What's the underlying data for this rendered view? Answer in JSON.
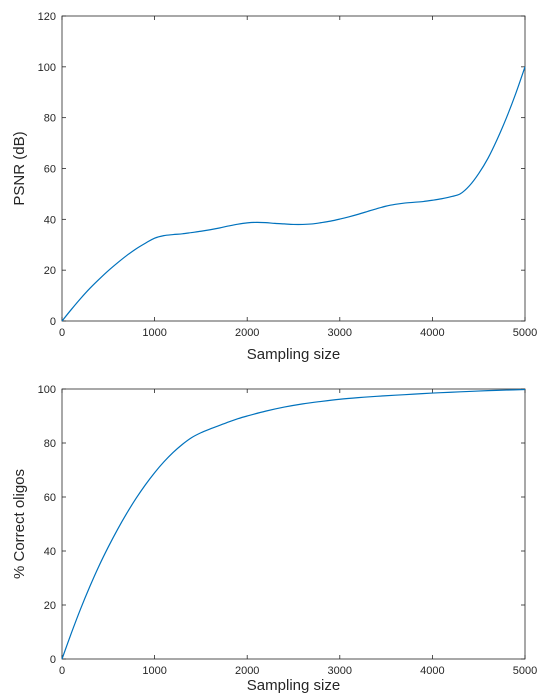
{
  "chart_data": [
    {
      "type": "line",
      "title": "",
      "xlabel": "Sampling size",
      "ylabel": "PSNR (dB)",
      "xlim": [
        0,
        5000
      ],
      "ylim": [
        0,
        120
      ],
      "xticks": [
        0,
        1000,
        2000,
        3000,
        4000,
        5000
      ],
      "yticks": [
        0,
        20,
        40,
        60,
        80,
        100,
        120
      ],
      "grid": false,
      "legend": "none",
      "line_color": "#0072BD",
      "series": [
        {
          "x": [
            0,
            100,
            200,
            300,
            400,
            500,
            600,
            700,
            800,
            900,
            1000,
            1100,
            1200,
            1300,
            1400,
            1500,
            1600,
            1700,
            1800,
            1900,
            2000,
            2100,
            2200,
            2300,
            2400,
            2500,
            2600,
            2700,
            2800,
            2900,
            3000,
            3100,
            3200,
            3300,
            3400,
            3500,
            3600,
            3700,
            3800,
            3900,
            4000,
            4100,
            4200,
            4300,
            4400,
            4500,
            4600,
            4700,
            4800,
            4900,
            5000
          ],
          "y": [
            0,
            4.5,
            8.8,
            12.8,
            16.4,
            19.8,
            22.9,
            25.8,
            28.4,
            30.6,
            32.6,
            33.6,
            34.0,
            34.3,
            34.8,
            35.3,
            35.9,
            36.6,
            37.4,
            38.1,
            38.6,
            38.8,
            38.7,
            38.4,
            38.2,
            38.0,
            38.0,
            38.2,
            38.7,
            39.3,
            40.1,
            41.0,
            42.0,
            43.1,
            44.2,
            45.2,
            45.9,
            46.4,
            46.7,
            47.0,
            47.5,
            48.1,
            48.9,
            50.0,
            53.2,
            58.0,
            64.0,
            71.5,
            80.0,
            89.5,
            100.0
          ]
        }
      ]
    },
    {
      "type": "line",
      "title": "",
      "xlabel": "Sampling size",
      "ylabel": "% Correct oligos",
      "xlim": [
        0,
        5000
      ],
      "ylim": [
        0,
        100
      ],
      "xticks": [
        0,
        1000,
        2000,
        3000,
        4000,
        5000
      ],
      "yticks": [
        0,
        20,
        40,
        60,
        80,
        100
      ],
      "grid": false,
      "legend": "none",
      "line_color": "#0072BD",
      "series": [
        {
          "x": [
            0,
            100,
            200,
            300,
            400,
            500,
            600,
            700,
            800,
            900,
            1000,
            1100,
            1200,
            1300,
            1400,
            1500,
            1600,
            1700,
            1800,
            1900,
            2000,
            2200,
            2400,
            2600,
            2800,
            3000,
            3200,
            3400,
            3600,
            3800,
            4000,
            4200,
            4400,
            4600,
            4800,
            5000
          ],
          "y": [
            0,
            9.5,
            18.5,
            26.8,
            34.5,
            41.5,
            48.0,
            54.0,
            59.5,
            64.5,
            69.0,
            73.0,
            76.5,
            79.5,
            82.0,
            83.8,
            85.2,
            86.5,
            87.8,
            89.0,
            90.0,
            91.8,
            93.3,
            94.5,
            95.4,
            96.2,
            96.8,
            97.3,
            97.7,
            98.1,
            98.5,
            98.8,
            99.1,
            99.4,
            99.6,
            99.8
          ]
        }
      ]
    }
  ]
}
